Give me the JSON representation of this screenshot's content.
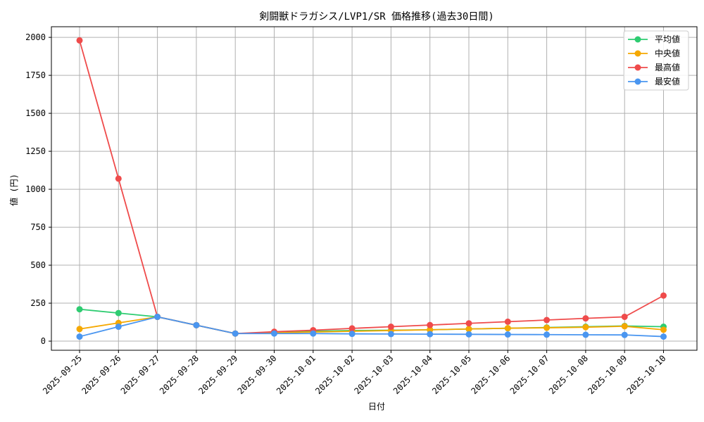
{
  "chart_data": {
    "type": "line",
    "title": "剣闘獣ドラガシス/LVP1/SR 価格推移(過去30日間)",
    "xlabel": "日付",
    "ylabel": "値 (円)",
    "ylim": [
      -60,
      2070
    ],
    "yticks": [
      0,
      250,
      500,
      750,
      1000,
      1250,
      1500,
      1750,
      2000
    ],
    "grid": true,
    "legend_position": "top-right",
    "categories": [
      "2025-09-25",
      "2025-09-26",
      "2025-09-27",
      "2025-09-28",
      "2025-09-29",
      "2025-09-30",
      "2025-10-01",
      "2025-10-02",
      "2025-10-03",
      "2025-10-04",
      "2025-10-05",
      "2025-10-06",
      "2025-10-07",
      "2025-10-08",
      "2025-10-09",
      "2025-10-10"
    ],
    "series": [
      {
        "name": "平均値",
        "color": "#2ecc71",
        "values": [
          210,
          185,
          160,
          105,
          50,
          55,
          65,
          70,
          72,
          75,
          80,
          85,
          90,
          95,
          100,
          95
        ]
      },
      {
        "name": "中央値",
        "color": "#f5a800",
        "values": [
          80,
          120,
          160,
          105,
          50,
          55,
          60,
          65,
          70,
          75,
          80,
          85,
          88,
          92,
          98,
          75
        ]
      },
      {
        "name": "最高値",
        "color": "#ef4b4b",
        "values": [
          1980,
          1070,
          160,
          105,
          50,
          62,
          72,
          84,
          95,
          106,
          117,
          128,
          139,
          150,
          160,
          300
        ]
      },
      {
        "name": "最安値",
        "color": "#4a96f0",
        "values": [
          30,
          95,
          160,
          105,
          50,
          50,
          50,
          48,
          47,
          46,
          45,
          44,
          43,
          42,
          41,
          30
        ]
      }
    ]
  }
}
